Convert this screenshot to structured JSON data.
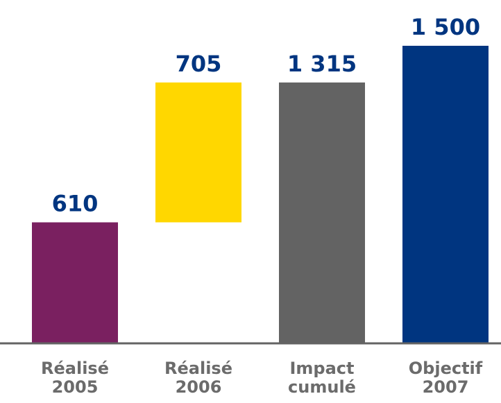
{
  "chart_data": {
    "type": "bar",
    "subtype": "waterfall",
    "categories": [
      [
        "Réalisé",
        "2005"
      ],
      [
        "Réalisé",
        "2006"
      ],
      [
        "Impact",
        "cumulé"
      ],
      [
        "Objectif",
        "2007"
      ]
    ],
    "bars": [
      {
        "base": 0,
        "top": 610,
        "label": "610"
      },
      {
        "base": 610,
        "top": 1315,
        "label": "705"
      },
      {
        "base": 0,
        "top": 1315,
        "label": "1 315"
      },
      {
        "base": 0,
        "top": 1500,
        "label": "1 500"
      }
    ],
    "values": [
      610,
      705,
      1315,
      1500
    ],
    "colors": [
      "#7a2060",
      "#ffd700",
      "#636363",
      "#003580"
    ],
    "label_color": "#003580",
    "axis_color": "#636363",
    "ylim": [
      0,
      1500
    ],
    "grid": false,
    "legend": "none"
  }
}
